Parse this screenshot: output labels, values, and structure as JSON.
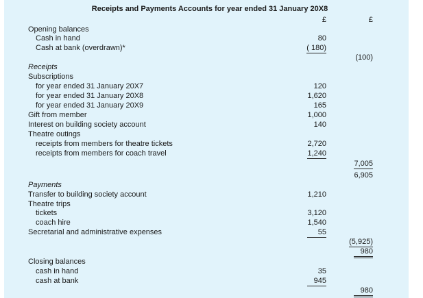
{
  "title": "Receipts and Payments Accounts for year ended 31 January 20X8",
  "currency_headers": [
    "£",
    "£"
  ],
  "rows": [
    {
      "label": "Opening balances"
    },
    {
      "label": "Cash in hand",
      "col1": "80"
    },
    {
      "label": "Cash at bank (overdrawn)*",
      "col1": "( 180)"
    },
    {
      "col2": "(100)"
    },
    {
      "label": "Receipts"
    },
    {
      "label": "Subscriptions"
    },
    {
      "label": "for year ended 31 January 20X7",
      "col1": "120"
    },
    {
      "label": "for year ended 31 January 20X8",
      "col1": "1,620"
    },
    {
      "label": "for year ended 31 January 20X9",
      "col1": "165"
    },
    {
      "label": "Gift from member",
      "col1": "1,000"
    },
    {
      "label": "Interest on building society account",
      "col1": "140"
    },
    {
      "label": "Theatre outings"
    },
    {
      "label": "receipts from members for theatre tickets",
      "col1": "2,720"
    },
    {
      "label": "receipts from members for coach travel",
      "col1": "1,240"
    },
    {
      "col2": "7,005"
    },
    {
      "col2": "6,905"
    },
    {
      "label": "Payments"
    },
    {
      "label": "Transfer to building society account",
      "col1": "1,210"
    },
    {
      "label": "Theatre trips"
    },
    {
      "label": "tickets",
      "col1": "3,120"
    },
    {
      "label": "coach hire",
      "col1": "1,540"
    },
    {
      "label": "Secretarial and administrative expenses",
      "col1": "55"
    },
    {
      "col2": "(5,925)"
    },
    {
      "col2": "980"
    },
    {
      "label": "Closing balances"
    },
    {
      "label": "cash in hand",
      "col1": "35"
    },
    {
      "label": "cash at bank",
      "col1": "945"
    },
    {
      "col2": "980"
    }
  ]
}
